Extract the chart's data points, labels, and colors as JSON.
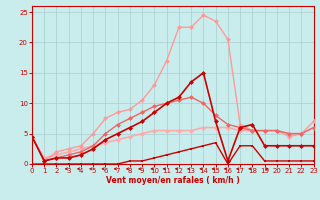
{
  "xlabel": "Vent moyen/en rafales ( km/h )",
  "xlim": [
    0,
    23
  ],
  "ylim": [
    0,
    26
  ],
  "yticks": [
    0,
    5,
    10,
    15,
    20,
    25
  ],
  "xticks": [
    0,
    1,
    2,
    3,
    4,
    5,
    6,
    7,
    8,
    9,
    10,
    11,
    12,
    13,
    14,
    15,
    16,
    17,
    18,
    19,
    20,
    21,
    22,
    23
  ],
  "bg_color": "#c9eded",
  "grid_color": "#aacccc",
  "series": [
    {
      "x": [
        0,
        1,
        2,
        3,
        4,
        5,
        6,
        7,
        8,
        9,
        10,
        11,
        12,
        13,
        14,
        15,
        16,
        17,
        18,
        19,
        20,
        21,
        22,
        23
      ],
      "y": [
        0,
        0,
        0,
        0,
        0,
        0,
        0,
        0,
        0.5,
        0.5,
        1,
        1.5,
        2,
        2.5,
        3,
        3.5,
        0,
        3,
        3,
        0.5,
        0.5,
        0.5,
        0.5,
        0.5
      ],
      "color": "#cc0000",
      "lw": 1.0,
      "marker": "s",
      "ms": 2.0,
      "zorder": 4
    },
    {
      "x": [
        0,
        1,
        2,
        3,
        4,
        5,
        6,
        7,
        8,
        9,
        10,
        11,
        12,
        13,
        14,
        15,
        16,
        17,
        18,
        19,
        20,
        21,
        22,
        23
      ],
      "y": [
        4.5,
        0.5,
        1,
        1,
        1.5,
        2.5,
        4,
        5,
        6,
        7,
        8.5,
        10,
        11,
        13.5,
        15,
        7,
        0.5,
        6,
        6.5,
        3,
        3,
        3,
        3,
        3
      ],
      "color": "#cc0000",
      "lw": 1.2,
      "marker": "D",
      "ms": 2.5,
      "zorder": 5
    },
    {
      "x": [
        0,
        1,
        2,
        3,
        4,
        5,
        6,
        7,
        8,
        9,
        10,
        11,
        12,
        13,
        14,
        15,
        16,
        17,
        18,
        19,
        20,
        21,
        22,
        23
      ],
      "y": [
        4.5,
        0.5,
        2,
        2.5,
        3,
        5,
        7.5,
        8.5,
        9,
        10.5,
        13,
        17,
        22.5,
        22.5,
        24.5,
        23.5,
        20.5,
        6.5,
        5.5,
        5.5,
        5.5,
        4.5,
        5,
        7
      ],
      "color": "#ff9999",
      "lw": 1.0,
      "marker": "D",
      "ms": 2.5,
      "zorder": 3
    },
    {
      "x": [
        0,
        1,
        2,
        3,
        4,
        5,
        6,
        7,
        8,
        9,
        10,
        11,
        12,
        13,
        14,
        15,
        16,
        17,
        18,
        19,
        20,
        21,
        22,
        23
      ],
      "y": [
        4.5,
        1,
        1.5,
        2,
        2.5,
        3,
        3.5,
        4,
        4.5,
        5,
        5.5,
        5.5,
        5.5,
        5.5,
        6,
        6,
        6,
        5.5,
        5.5,
        5.5,
        5.5,
        5,
        5,
        6
      ],
      "color": "#ffaaaa",
      "lw": 1.2,
      "marker": "D",
      "ms": 2.5,
      "zorder": 2
    },
    {
      "x": [
        0,
        1,
        2,
        3,
        4,
        5,
        6,
        7,
        8,
        9,
        10,
        11,
        12,
        13,
        14,
        15,
        16,
        17,
        18,
        19,
        20,
        21,
        22,
        23
      ],
      "y": [
        4.5,
        0.5,
        1,
        1.5,
        2,
        3,
        5,
        6.5,
        7.5,
        8.5,
        9.5,
        10,
        10.5,
        11,
        10,
        8,
        6.5,
        6,
        5.5,
        5.5,
        5.5,
        5,
        5,
        6
      ],
      "color": "#ee6666",
      "lw": 1.0,
      "marker": "D",
      "ms": 2.5,
      "zorder": 3
    }
  ],
  "left_arrows_x": [
    3,
    4,
    5,
    6,
    7,
    8,
    9,
    10,
    11,
    12,
    13,
    14,
    15,
    16,
    17,
    18
  ],
  "right_arrows_x": [
    19
  ]
}
